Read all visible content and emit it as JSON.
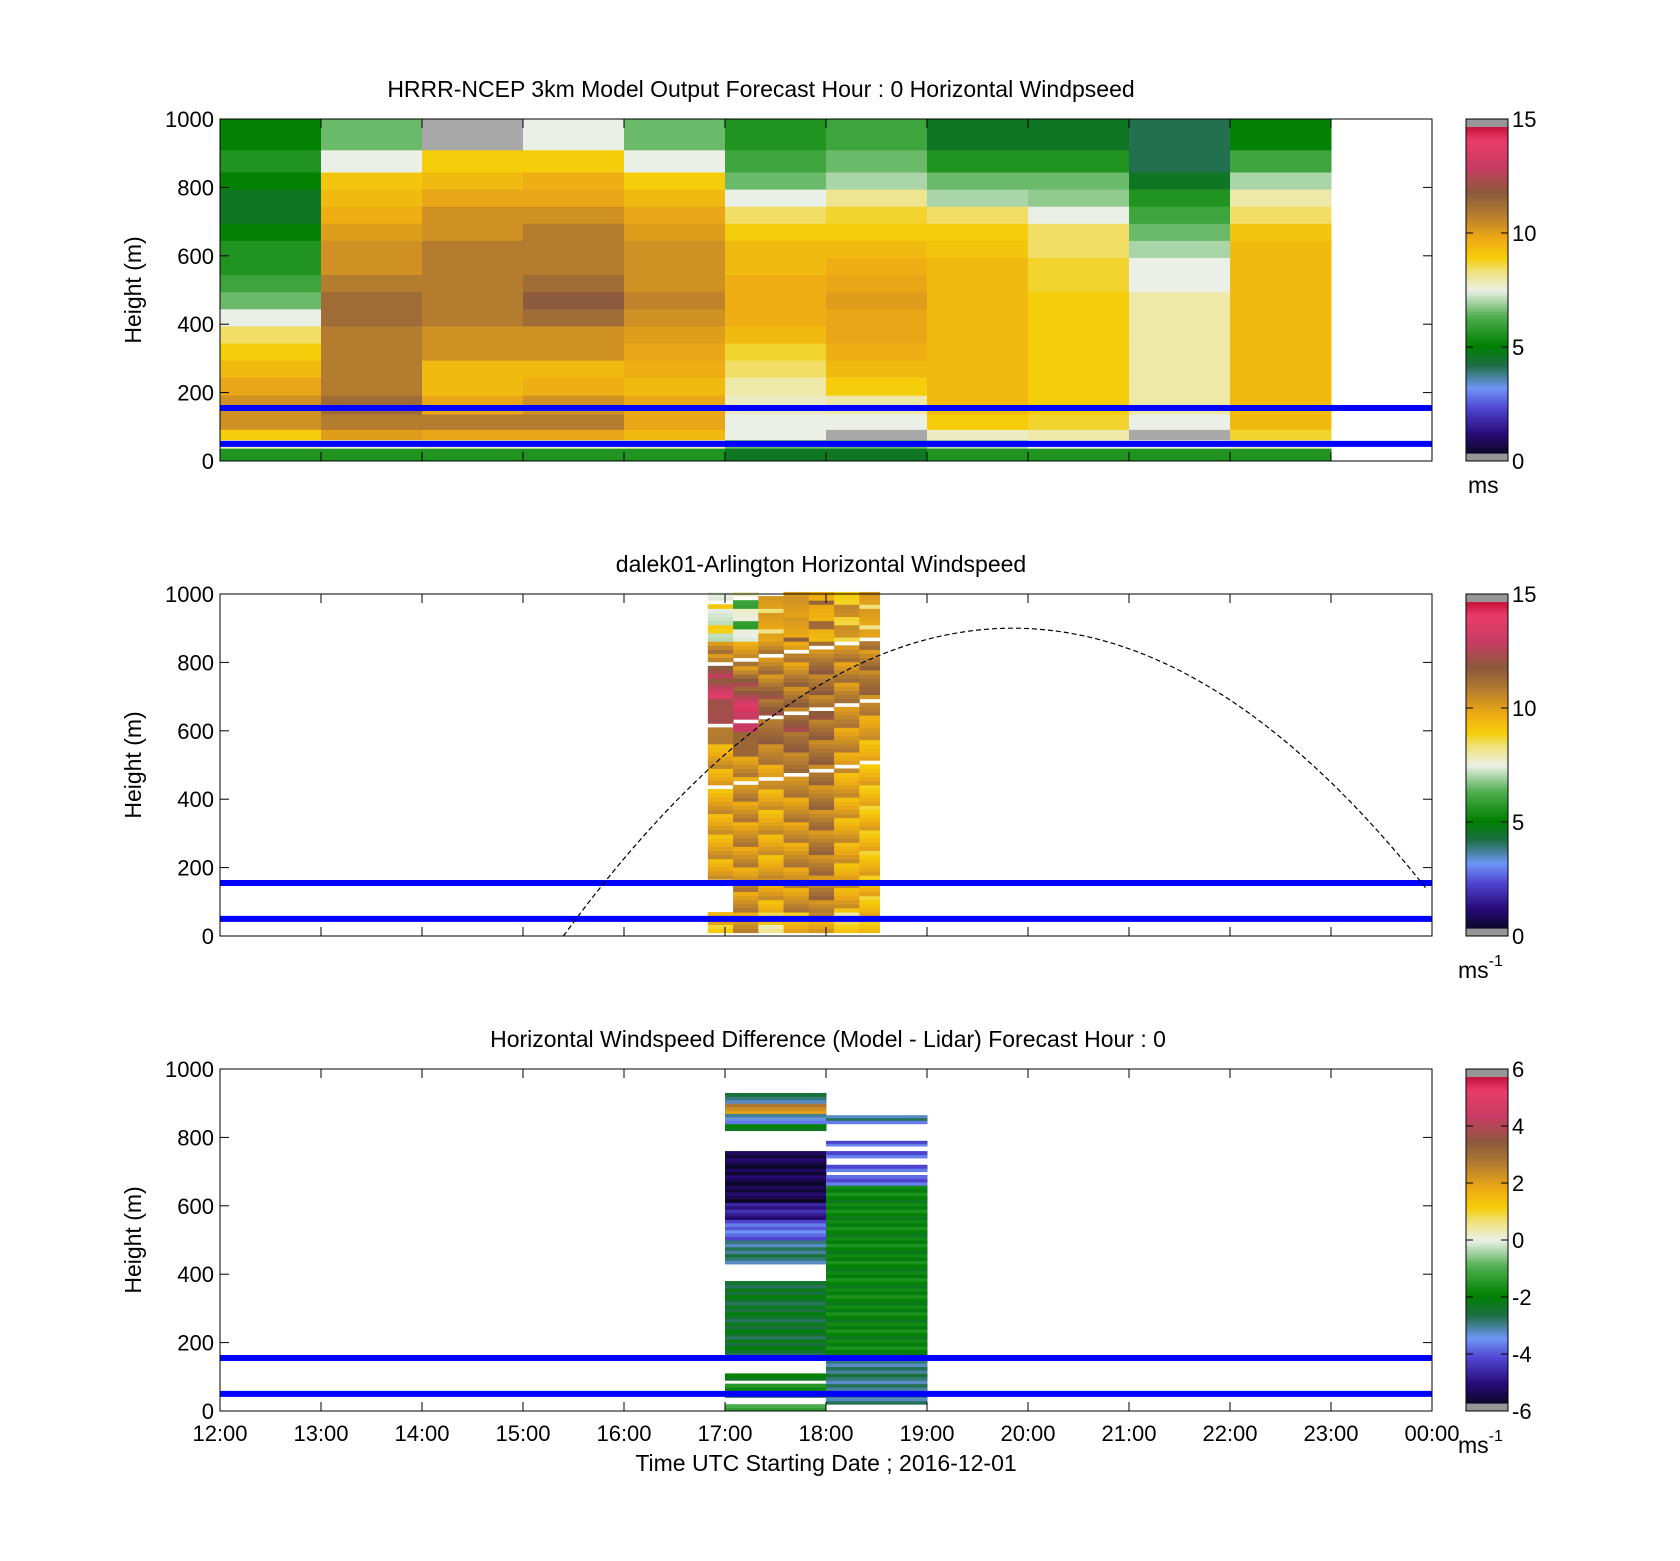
{
  "chart_data": [
    {
      "type": "heatmap",
      "title": "HRRR-NCEP 3km Model Output   Forecast Hour : 0 Horizontal Windpseed",
      "ylabel": "Height (m)",
      "xlabel": "",
      "ylim": [
        0,
        1000
      ],
      "yticks": [
        "0",
        "200",
        "400",
        "600",
        "800",
        "1000"
      ],
      "xlim_hours": [
        12,
        24
      ],
      "colorbar": {
        "range": [
          0,
          15
        ],
        "ticks": [
          "0",
          "5",
          "10",
          "15"
        ],
        "unit_label": "ms",
        "unit_sup": ""
      },
      "reference_lines_m": [
        50,
        155
      ],
      "time_hours": [
        12,
        13,
        14,
        15,
        16,
        17,
        18,
        19,
        20,
        21,
        22
      ],
      "heights_m": [
        25,
        50,
        75,
        110,
        165,
        220,
        270,
        320,
        370,
        420,
        470,
        520,
        570,
        620,
        670,
        720,
        770,
        820,
        870,
        950
      ],
      "values": [
        [
          5.5,
          7.8,
          9.0,
          10.5,
          10.5,
          10.0,
          9.5,
          9.0,
          8.5,
          7.5,
          6.5,
          6.0,
          5.5,
          5.5,
          5.0,
          4.5,
          4.5,
          5.0,
          5.5,
          5.0
        ],
        [
          5.5,
          7.5,
          10.2,
          11.0,
          11.5,
          11.0,
          11.0,
          11.0,
          11.0,
          11.5,
          11.5,
          11.0,
          10.5,
          10.5,
          10.2,
          9.8,
          9.5,
          9.2,
          7.5,
          6.5
        ],
        [
          5.5,
          7.8,
          10.0,
          11.0,
          10.0,
          9.5,
          9.5,
          10.5,
          10.5,
          11.0,
          11.0,
          11.0,
          11.0,
          11.0,
          10.5,
          10.5,
          10.0,
          9.5,
          9.0,
          0.0
        ],
        [
          5.5,
          7.8,
          10.0,
          11.0,
          10.5,
          9.8,
          9.5,
          10.5,
          10.5,
          11.5,
          12.0,
          11.5,
          11.0,
          11.0,
          11.0,
          10.5,
          10.0,
          9.8,
          9.0,
          7.5
        ],
        [
          5.5,
          7.8,
          9.5,
          10.0,
          10.0,
          9.5,
          9.8,
          10.0,
          10.2,
          10.5,
          10.8,
          10.5,
          10.5,
          10.5,
          10.2,
          10.0,
          9.5,
          9.0,
          7.5,
          6.5
        ],
        [
          4.5,
          6.5,
          7.5,
          7.5,
          7.8,
          8.0,
          8.5,
          8.8,
          9.5,
          9.8,
          9.8,
          9.8,
          9.5,
          9.5,
          9.0,
          8.5,
          7.5,
          6.5,
          6.0,
          5.5
        ],
        [
          4.5,
          6.5,
          0.0,
          7.5,
          8.0,
          9.0,
          9.5,
          9.8,
          10.0,
          10.0,
          10.2,
          10.0,
          9.8,
          9.5,
          9.0,
          8.8,
          8.2,
          7.0,
          6.5,
          6.0
        ],
        [
          5.5,
          7.0,
          7.8,
          9.0,
          9.5,
          9.5,
          9.5,
          9.5,
          9.5,
          9.5,
          9.5,
          9.5,
          9.5,
          9.2,
          9.0,
          8.5,
          7.0,
          6.5,
          5.5,
          4.5
        ],
        [
          5.5,
          7.5,
          8.0,
          8.8,
          9.0,
          9.0,
          9.0,
          9.0,
          9.0,
          9.0,
          9.0,
          8.8,
          8.8,
          8.5,
          8.5,
          7.5,
          6.8,
          6.5,
          5.5,
          4.5
        ],
        [
          5.5,
          7.5,
          0.0,
          7.5,
          8.0,
          8.0,
          8.0,
          8.0,
          8.0,
          8.0,
          8.0,
          7.5,
          7.5,
          7.0,
          6.5,
          6.0,
          5.5,
          4.5,
          4.0,
          4.0
        ],
        [
          5.5,
          7.8,
          8.8,
          9.5,
          9.5,
          9.5,
          9.5,
          9.5,
          9.5,
          9.5,
          9.5,
          9.5,
          9.5,
          9.5,
          9.2,
          8.5,
          8.0,
          7.0,
          6.0,
          5.0
        ]
      ]
    },
    {
      "type": "heatmap",
      "title": "dalek01-Arlington  Horizontal Windspeed",
      "ylabel": "Height (m)",
      "xlabel": "",
      "ylim": [
        0,
        1000
      ],
      "yticks": [
        "0",
        "200",
        "400",
        "600",
        "800",
        "1000"
      ],
      "xlim_hours": [
        12,
        24
      ],
      "colorbar": {
        "range": [
          0,
          15
        ],
        "ticks": [
          "0",
          "5",
          "10",
          "15"
        ],
        "unit_label": "ms",
        "unit_sup": "-1"
      },
      "reference_lines_m": [
        50,
        155
      ],
      "dashed_curve": {
        "start_hour": 15.4,
        "peak_hour": 19.85,
        "peak_height_m": 900,
        "shape": "parabola"
      },
      "time_start_hours": [
        16.83,
        17.08,
        17.33,
        17.58,
        17.83,
        18.08,
        18.33
      ],
      "time_end_hours": [
        17.08,
        17.33,
        17.58,
        17.83,
        18.08,
        18.33,
        18.53
      ],
      "profiles": [
        {
          "peak": 13.5,
          "peak_h": 700,
          "width": 160,
          "low": 10.0,
          "top": 7.0,
          "gap_from": 60,
          "gap_to": 165
        },
        {
          "peak": 14.0,
          "peak_h": 650,
          "width": 140,
          "low": 10.5,
          "top": 6.0,
          "gap_from": 0,
          "gap_to": 0
        },
        {
          "peak": 12.0,
          "peak_h": 650,
          "width": 220,
          "low": 10.0,
          "top": 9.0,
          "gap_from": 0,
          "gap_to": 0
        },
        {
          "peak": 11.8,
          "peak_h": 600,
          "width": 220,
          "low": 10.5,
          "top": 9.5,
          "gap_from": 0,
          "gap_to": 0
        },
        {
          "peak": 11.5,
          "peak_h": 650,
          "width": 250,
          "low": 11.0,
          "top": 9.5,
          "gap_from": 0,
          "gap_to": 0
        },
        {
          "peak": 11.0,
          "peak_h": 700,
          "width": 250,
          "low": 10.0,
          "top": 9.0,
          "gap_from": 0,
          "gap_to": 0
        },
        {
          "peak": 11.5,
          "peak_h": 750,
          "width": 220,
          "low": 9.5,
          "top": 9.0,
          "gap_from": 0,
          "gap_to": 0
        }
      ]
    },
    {
      "type": "heatmap",
      "title": "Horizontal Windspeed Difference (Model - Lidar) Forecast Hour : 0",
      "ylabel": "Height (m)",
      "xlabel": "Time UTC  Starting Date ; 2016-12-01",
      "ylim": [
        0,
        1000
      ],
      "yticks": [
        "0",
        "200",
        "400",
        "600",
        "800",
        "1000"
      ],
      "xticks": [
        "12:00",
        "13:00",
        "14:00",
        "15:00",
        "16:00",
        "17:00",
        "18:00",
        "19:00",
        "20:00",
        "21:00",
        "22:00",
        "23:00",
        "00:00"
      ],
      "xlim_hours": [
        12,
        24
      ],
      "colorbar": {
        "range": [
          -6,
          6
        ],
        "ticks": [
          "-6",
          "-4",
          "-2",
          "0",
          "2",
          "4",
          "6"
        ],
        "unit_label": "ms",
        "unit_sup": "-1"
      },
      "reference_lines_m": [
        50,
        155
      ],
      "time_start_hours": [
        17.0,
        18.0
      ],
      "time_end_hours": [
        18.0,
        19.0
      ],
      "segments": [
        [
          {
            "from": 0,
            "to": 20,
            "value": -1.0
          },
          {
            "from": 40,
            "to": 60,
            "value": -2.5
          },
          {
            "from": 60,
            "to": 80,
            "value": -1.5
          },
          {
            "from": 90,
            "to": 110,
            "value": -2.0
          },
          {
            "from": 160,
            "to": 380,
            "value": -2.5
          },
          {
            "from": 430,
            "to": 500,
            "value": -3.0
          },
          {
            "from": 500,
            "to": 560,
            "value": -4.0
          },
          {
            "from": 560,
            "to": 610,
            "value": -5.0
          },
          {
            "from": 610,
            "to": 760,
            "value": -5.7
          },
          {
            "from": 820,
            "to": 840,
            "value": -2.0
          },
          {
            "from": 840,
            "to": 870,
            "value": -3.5
          },
          {
            "from": 870,
            "to": 900,
            "value": 2.5
          },
          {
            "from": 900,
            "to": 930,
            "value": -3.0
          }
        ],
        [
          {
            "from": 20,
            "to": 150,
            "value": -3.0
          },
          {
            "from": 150,
            "to": 660,
            "value": -2.0
          },
          {
            "from": 660,
            "to": 690,
            "value": -4.0
          },
          {
            "from": 700,
            "to": 720,
            "value": -4.0
          },
          {
            "from": 740,
            "to": 760,
            "value": -4.0
          },
          {
            "from": 775,
            "to": 790,
            "value": -4.0
          },
          {
            "from": 840,
            "to": 850,
            "value": -4.0
          },
          {
            "from": 850,
            "to": 865,
            "value": -3.0
          }
        ]
      ]
    }
  ]
}
